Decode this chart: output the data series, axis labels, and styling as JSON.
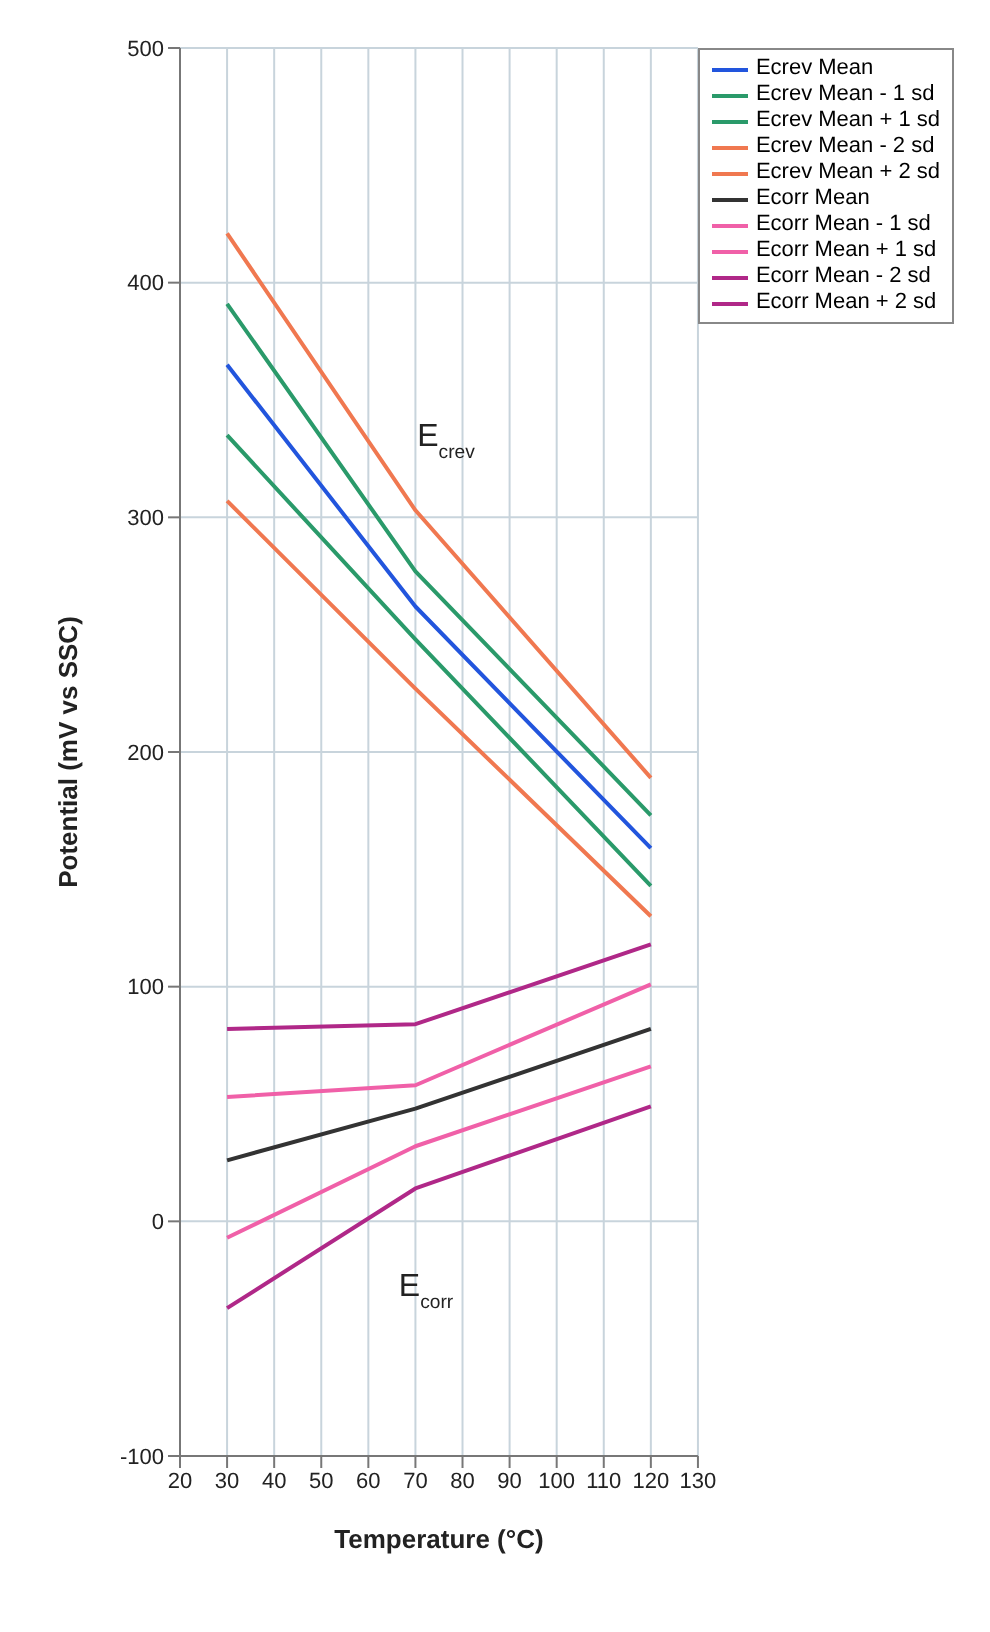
{
  "chart_data": {
    "type": "line",
    "xlabel": "Temperature (°C)",
    "ylabel": "Potential (mV vs SSC)",
    "x": [
      30,
      70,
      120
    ],
    "series": [
      {
        "name": "Ecrev Mean",
        "color": "#2255dd",
        "values": [
          365,
          262,
          159
        ],
        "line_style": "solid"
      },
      {
        "name": "Ecrev Mean - 1 sd",
        "color": "#2a9a6a",
        "values": [
          335,
          248,
          143
        ],
        "line_style": "solid"
      },
      {
        "name": "Ecrev Mean + 1 sd",
        "color": "#2a9a6a",
        "values": [
          391,
          277,
          173
        ],
        "line_style": "solid"
      },
      {
        "name": "Ecrev Mean - 2 sd",
        "color": "#f07850",
        "values": [
          307,
          227,
          130
        ],
        "line_style": "solid"
      },
      {
        "name": "Ecrev Mean + 2 sd",
        "color": "#f07850",
        "values": [
          421,
          303,
          189
        ],
        "line_style": "solid"
      },
      {
        "name": "Ecorr Mean",
        "color": "#333333",
        "values": [
          26,
          48,
          82
        ],
        "line_style": "solid"
      },
      {
        "name": "Ecorr Mean - 1 sd",
        "color": "#f060a8",
        "values": [
          -7,
          32,
          66
        ],
        "line_style": "solid"
      },
      {
        "name": "Ecorr Mean + 1 sd",
        "color": "#f060a8",
        "values": [
          53,
          58,
          101
        ],
        "line_style": "solid"
      },
      {
        "name": "Ecorr Mean - 2 sd",
        "color": "#b02888",
        "values": [
          -37,
          14,
          49
        ],
        "line_style": "solid"
      },
      {
        "name": "Ecorr Mean + 2 sd",
        "color": "#b02888",
        "values": [
          82,
          84,
          118
        ],
        "line_style": "solid"
      }
    ],
    "xlim": [
      20,
      130
    ],
    "xticks": [
      20,
      30,
      40,
      50,
      60,
      70,
      80,
      90,
      100,
      110,
      120,
      130
    ],
    "ylim": [
      -100,
      500
    ],
    "yticks": [
      -100,
      0,
      100,
      200,
      300,
      400,
      500
    ],
    "grid": true,
    "legend": "top right",
    "marker": "none",
    "annotations": [
      "E$_{crev}$",
      "E$_{corr}$"
    ]
  }
}
